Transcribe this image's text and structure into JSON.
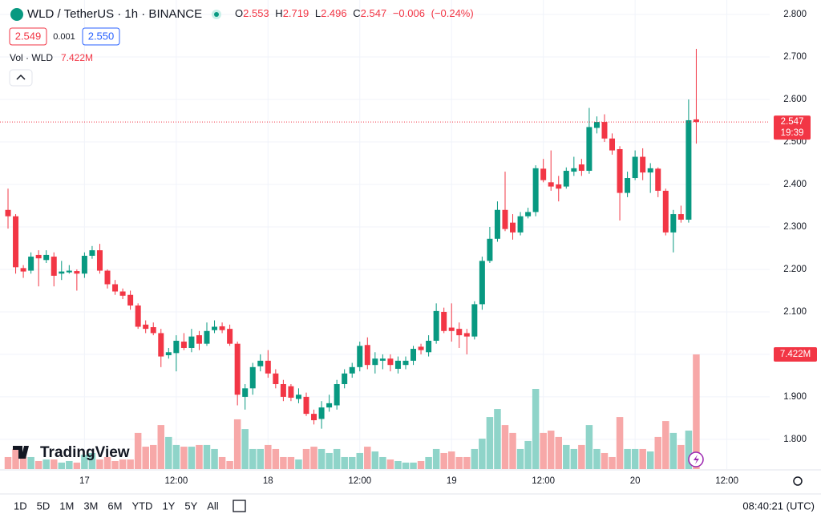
{
  "header": {
    "symbol": "WLD / TetherUS · 1h · BINANCE",
    "open_letter": "O",
    "high_letter": "H",
    "low_letter": "L",
    "close_letter": "C",
    "change": "−0.006",
    "change_pct": "(−0.24%)"
  },
  "quote": {
    "bid": "2.549",
    "spread": "0.001",
    "ask": "2.550"
  },
  "countdown": "19:39",
  "logo": "TradingView",
  "toolbar": {
    "ranges": [
      "1D",
      "5D",
      "1M",
      "3M",
      "6M",
      "YTD",
      "1Y",
      "5Y",
      "All"
    ],
    "clock": "08:40:21 (UTC)"
  },
  "chart_data": {
    "type": "candlestick",
    "open": [
      2.34,
      2.325,
      2.203,
      2.197,
      2.234,
      2.222,
      2.23,
      2.19,
      2.193,
      2.196,
      2.19,
      2.232,
      2.245,
      2.197,
      2.165,
      2.148,
      2.14,
      2.115,
      2.07,
      2.064,
      2.05,
      1.998,
      2.003,
      2.03,
      2.015,
      2.045,
      2.025,
      2.057,
      2.066,
      2.06,
      2.025,
      1.9,
      1.92,
      1.972,
      1.985,
      1.955,
      1.93,
      1.925,
      1.895,
      1.9,
      1.86,
      1.848,
      1.875,
      1.88,
      1.93,
      1.955,
      1.97,
      2.022,
      1.975,
      1.985,
      1.99,
      1.966,
      1.975,
      1.985,
      2.018,
      2.005,
      2.032,
      2.1,
      2.063,
      2.06,
      2.05,
      2.042,
      2.118,
      2.22,
      2.272,
      2.34,
      2.31,
      2.287,
      2.325,
      2.335,
      2.437,
      2.405,
      2.4,
      2.395,
      2.43,
      2.447,
      2.432,
      2.533,
      2.547,
      2.508,
      2.483,
      2.38,
      2.415,
      2.465,
      2.428,
      2.437,
      2.385,
      2.287,
      2.33,
      2.317,
      2.553
    ],
    "high": [
      2.39,
      2.33,
      2.21,
      2.24,
      2.245,
      2.245,
      2.24,
      2.22,
      2.21,
      2.2,
      2.24,
      2.255,
      2.26,
      2.2,
      2.175,
      2.155,
      2.15,
      2.12,
      2.08,
      2.075,
      2.06,
      2.015,
      2.045,
      2.05,
      2.06,
      2.055,
      2.075,
      2.08,
      2.075,
      2.07,
      2.03,
      1.93,
      1.98,
      2.0,
      2.01,
      1.965,
      1.94,
      1.93,
      1.92,
      1.91,
      1.87,
      1.89,
      1.905,
      1.94,
      1.965,
      1.98,
      2.03,
      2.04,
      2.005,
      2.0,
      2.0,
      1.995,
      1.995,
      2.02,
      2.025,
      2.045,
      2.12,
      2.11,
      2.12,
      2.075,
      2.06,
      2.125,
      2.23,
      2.3,
      2.36,
      2.43,
      2.33,
      2.335,
      2.345,
      2.445,
      2.46,
      2.48,
      2.42,
      2.44,
      2.465,
      2.46,
      2.58,
      2.56,
      2.565,
      2.52,
      2.49,
      2.43,
      2.48,
      2.485,
      2.45,
      2.44,
      2.39,
      2.34,
      2.35,
      2.6,
      2.719
    ],
    "low": [
      2.296,
      2.19,
      2.18,
      2.19,
      2.16,
      2.215,
      2.16,
      2.175,
      2.19,
      2.15,
      2.18,
      2.225,
      2.19,
      2.155,
      2.14,
      2.13,
      2.105,
      2.06,
      2.05,
      2.045,
      1.97,
      1.99,
      1.96,
      2.01,
      2.005,
      2.01,
      2.02,
      2.05,
      2.05,
      2.02,
      1.88,
      1.87,
      1.905,
      1.96,
      1.945,
      1.92,
      1.89,
      1.89,
      1.885,
      1.855,
      1.835,
      1.825,
      1.865,
      1.87,
      1.92,
      1.945,
      1.96,
      1.965,
      1.955,
      1.965,
      1.96,
      1.955,
      1.965,
      1.975,
      2.0,
      1.995,
      2.025,
      2.05,
      2.03,
      2.015,
      2.0,
      2.035,
      2.105,
      2.215,
      2.265,
      2.29,
      2.27,
      2.28,
      2.32,
      2.325,
      2.405,
      2.385,
      2.36,
      2.39,
      2.42,
      2.42,
      2.425,
      2.52,
      2.5,
      2.47,
      2.315,
      2.37,
      2.41,
      2.41,
      2.38,
      2.37,
      2.28,
      2.24,
      2.31,
      2.31,
      2.496
    ],
    "close": [
      2.325,
      2.205,
      2.195,
      2.23,
      2.226,
      2.234,
      2.185,
      2.195,
      2.197,
      2.19,
      2.232,
      2.245,
      2.197,
      2.165,
      2.148,
      2.138,
      2.115,
      2.065,
      2.06,
      2.05,
      1.995,
      2.005,
      2.032,
      2.015,
      2.042,
      2.025,
      2.055,
      2.065,
      2.057,
      2.025,
      1.905,
      1.92,
      1.97,
      1.985,
      1.955,
      1.93,
      1.9,
      1.898,
      1.905,
      1.86,
      1.845,
      1.875,
      1.885,
      1.93,
      1.955,
      1.97,
      2.02,
      1.975,
      1.99,
      1.99,
      1.975,
      1.985,
      1.985,
      2.013,
      2.01,
      2.032,
      2.102,
      2.055,
      2.055,
      2.045,
      2.042,
      2.118,
      2.22,
      2.272,
      2.34,
      2.295,
      2.287,
      2.325,
      2.335,
      2.438,
      2.41,
      2.395,
      2.39,
      2.432,
      2.438,
      2.432,
      2.535,
      2.547,
      2.508,
      2.48,
      2.38,
      2.415,
      2.465,
      2.428,
      2.438,
      2.385,
      2.287,
      2.33,
      2.317,
      2.551,
      2.547
    ],
    "volume": {
      "name": "Vol · WLD",
      "values": [
        0.78,
        1.3,
        0.78,
        0.78,
        0.52,
        0.62,
        0.62,
        0.42,
        0.52,
        0.42,
        0.93,
        1.04,
        0.62,
        0.78,
        0.52,
        0.62,
        0.62,
        2.34,
        1.45,
        1.56,
        2.85,
        2.08,
        1.56,
        1.45,
        1.45,
        1.56,
        1.56,
        1.3,
        0.78,
        0.52,
        3.22,
        2.59,
        1.3,
        1.3,
        1.56,
        1.3,
        0.78,
        0.78,
        0.62,
        1.3,
        1.45,
        1.3,
        1.04,
        1.3,
        0.78,
        0.78,
        1.04,
        1.45,
        1.14,
        0.78,
        0.62,
        0.52,
        0.42,
        0.42,
        0.52,
        0.78,
        1.3,
        1.04,
        1.14,
        0.78,
        0.78,
        1.3,
        1.97,
        3.37,
        3.89,
        2.85,
        2.34,
        1.3,
        1.82,
        5.19,
        2.34,
        2.49,
        2.08,
        1.56,
        1.3,
        1.56,
        2.85,
        1.3,
        1.04,
        0.78,
        3.37,
        1.3,
        1.3,
        1.3,
        1.14,
        2.08,
        3.11,
        2.34,
        1.56,
        2.49,
        7.422
      ],
      "value_labels": [
        null,
        null,
        null,
        null,
        null,
        null,
        null,
        null,
        null,
        null,
        null,
        null,
        null,
        null,
        null,
        null,
        null,
        null,
        null,
        null,
        null,
        null,
        null,
        null,
        null,
        null,
        null,
        null,
        null,
        null,
        null,
        null,
        null,
        null,
        null,
        null,
        null,
        null,
        null,
        null,
        null,
        null,
        null,
        null,
        null,
        null,
        null,
        null,
        null,
        null,
        null,
        null,
        null,
        null,
        null,
        null,
        null,
        null,
        null,
        null,
        null,
        null,
        null,
        null,
        null,
        null,
        null,
        null,
        null,
        null,
        null,
        null,
        null,
        null,
        null,
        null,
        null,
        null,
        null,
        null,
        null,
        null,
        null,
        null,
        null,
        null,
        null,
        null,
        null,
        null,
        "7.422M"
      ],
      "ylim": [
        0,
        30.36
      ]
    },
    "up_color": "#089981",
    "down_color": "#f23645",
    "up_volume_color": "#8fd4c9",
    "down_volume_color": "#f7a8a8",
    "xlim": [
      -1.05,
      99.6
    ],
    "xticks": [
      {
        "value": 10,
        "label": "17"
      },
      {
        "value": 22,
        "label": "12:00"
      },
      {
        "value": 34,
        "label": "18"
      },
      {
        "value": 46,
        "label": "12:00"
      },
      {
        "value": 58,
        "label": "19"
      },
      {
        "value": 70,
        "label": "12:00"
      },
      {
        "value": 82,
        "label": "20"
      },
      {
        "value": 94,
        "label": "12:00"
      }
    ],
    "ylim": [
      1.73,
      2.834
    ],
    "yticks": [
      {
        "value": 1.8,
        "label": "1.800"
      },
      {
        "value": 1.9,
        "label": "1.900"
      },
      {
        "value": 2.0,
        "label": "2.000"
      },
      {
        "value": 2.1,
        "label": "2.100"
      },
      {
        "value": 2.2,
        "label": "2.200"
      },
      {
        "value": 2.3,
        "label": "2.300"
      },
      {
        "value": 2.4,
        "label": "2.400"
      },
      {
        "value": 2.5,
        "label": "2.500"
      },
      {
        "value": 2.6,
        "label": "2.600"
      },
      {
        "value": 2.7,
        "label": "2.700"
      },
      {
        "value": 2.8,
        "label": "2.800"
      }
    ],
    "grid": true
  }
}
